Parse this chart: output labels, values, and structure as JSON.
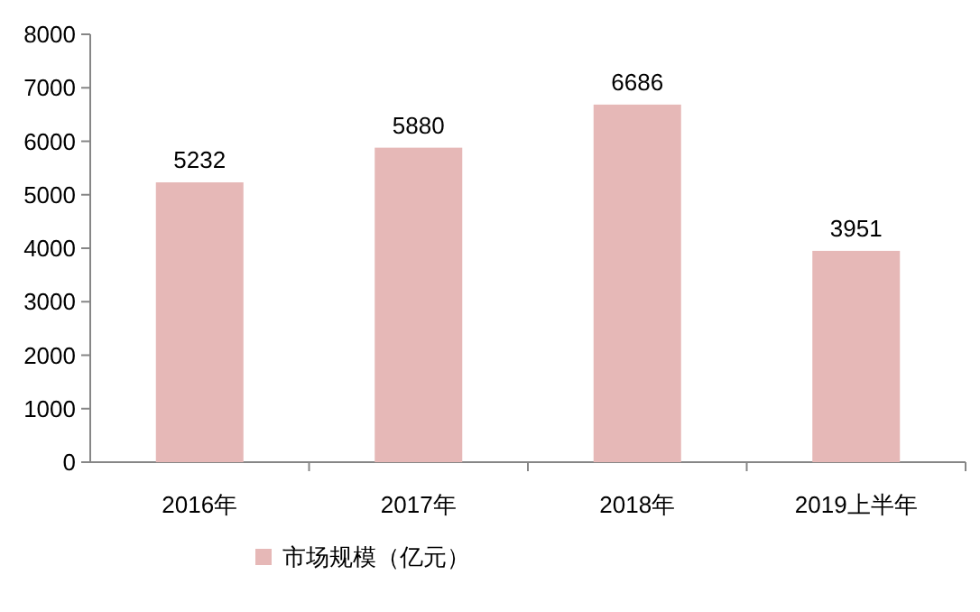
{
  "chart_data": {
    "type": "bar",
    "categories": [
      "2016年",
      "2017年",
      "2018年",
      "2019上半年"
    ],
    "series": [
      {
        "name": "市场规模（亿元）",
        "color": "#e6b8b7",
        "values": [
          5232,
          5880,
          6686,
          3951
        ]
      }
    ],
    "ylim": [
      0,
      8000
    ],
    "yticks": [
      0,
      1000,
      2000,
      3000,
      4000,
      5000,
      6000,
      7000,
      8000
    ],
    "data_labels": true,
    "legend": "bottom",
    "grid": false
  }
}
